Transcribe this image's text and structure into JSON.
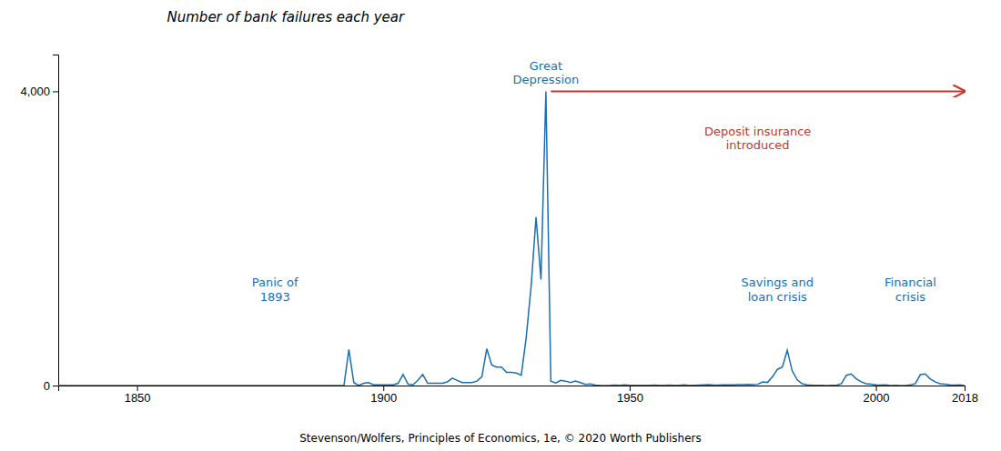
{
  "chart_data": {
    "type": "line",
    "title": "Number of bank failures each year",
    "caption": "Stevenson/Wolfers, Principles of Economics, 1e, © 2020 Worth Publishers",
    "color": "#1a6faf",
    "grid": false,
    "x": [
      1834,
      1835,
      1836,
      1837,
      1838,
      1839,
      1840,
      1841,
      1842,
      1843,
      1844,
      1845,
      1846,
      1847,
      1848,
      1849,
      1850,
      1851,
      1852,
      1853,
      1854,
      1855,
      1856,
      1857,
      1858,
      1859,
      1860,
      1861,
      1862,
      1863,
      1864,
      1865,
      1866,
      1867,
      1868,
      1869,
      1870,
      1871,
      1872,
      1873,
      1874,
      1875,
      1876,
      1877,
      1878,
      1879,
      1880,
      1881,
      1882,
      1883,
      1884,
      1885,
      1886,
      1887,
      1888,
      1889,
      1890,
      1891,
      1892,
      1893,
      1894,
      1895,
      1896,
      1897,
      1898,
      1899,
      1900,
      1901,
      1902,
      1903,
      1904,
      1905,
      1906,
      1907,
      1908,
      1909,
      1910,
      1911,
      1912,
      1913,
      1914,
      1915,
      1916,
      1917,
      1918,
      1919,
      1920,
      1921,
      1922,
      1923,
      1924,
      1925,
      1926,
      1927,
      1928,
      1929,
      1930,
      1931,
      1932,
      1933,
      1934,
      1935,
      1936,
      1937,
      1938,
      1939,
      1940,
      1941,
      1942,
      1943,
      1944,
      1945,
      1946,
      1947,
      1948,
      1949,
      1950,
      1951,
      1952,
      1953,
      1954,
      1955,
      1956,
      1957,
      1958,
      1959,
      1960,
      1961,
      1962,
      1963,
      1964,
      1965,
      1966,
      1967,
      1968,
      1969,
      1970,
      1971,
      1972,
      1973,
      1974,
      1975,
      1976,
      1977,
      1978,
      1979,
      1980,
      1981,
      1982,
      1983,
      1984,
      1985,
      1986,
      1987,
      1988,
      1989,
      1990,
      1991,
      1992,
      1993,
      1994,
      1995,
      1996,
      1997,
      1998,
      1999,
      2000,
      2001,
      2002,
      2003,
      2004,
      2005,
      2006,
      2007,
      2008,
      2009,
      2010,
      2011,
      2012,
      2013,
      2014,
      2015,
      2016,
      2017,
      2018
    ],
    "values": [
      0,
      0,
      0,
      0,
      0,
      0,
      0,
      0,
      0,
      0,
      0,
      0,
      0,
      0,
      0,
      0,
      0,
      0,
      0,
      0,
      0,
      0,
      0,
      0,
      0,
      0,
      0,
      0,
      0,
      0,
      0,
      0,
      0,
      0,
      0,
      0,
      0,
      0,
      0,
      0,
      0,
      0,
      0,
      0,
      0,
      0,
      0,
      0,
      0,
      0,
      0,
      0,
      0,
      0,
      0,
      0,
      0,
      0,
      0,
      490,
      40,
      0,
      30,
      40,
      10,
      10,
      10,
      10,
      10,
      30,
      150,
      20,
      10,
      70,
      150,
      30,
      30,
      30,
      30,
      50,
      100,
      70,
      40,
      40,
      40,
      60,
      120,
      500,
      280,
      250,
      250,
      180,
      180,
      170,
      140,
      650,
      1350,
      2290,
      1440,
      4000,
      60,
      35,
      70,
      60,
      40,
      60,
      40,
      17,
      22,
      5,
      2,
      1,
      2,
      6,
      3,
      9,
      4,
      2,
      3,
      2,
      3,
      5,
      3,
      2,
      5,
      3,
      2,
      9,
      3,
      4,
      6,
      9,
      11,
      7,
      7,
      8,
      8,
      10,
      12,
      13,
      15,
      13,
      17,
      49,
      42,
      120,
      220,
      250,
      480,
      200,
      80,
      25,
      10,
      5,
      3,
      2,
      1,
      2,
      3,
      25,
      140,
      157,
      92,
      51,
      24,
      18,
      8,
      5,
      8,
      0,
      4,
      0,
      0,
      8,
      25,
      148,
      157,
      92,
      51,
      24,
      18,
      8,
      5,
      8,
      0
    ],
    "xlim": [
      1834,
      2018
    ],
    "xticks": [
      1850,
      1900,
      1950,
      2000,
      2018
    ],
    "ylim": [
      0,
      4500
    ],
    "yticks": [
      0,
      {
        "value": 4000,
        "label": "4,000"
      }
    ],
    "annotations": [
      {
        "text": "Great\nDepression",
        "x": 1933,
        "y": 4050,
        "color": "#1a6faf"
      },
      {
        "text": "Panic of\n1893",
        "x": 1878,
        "y": 1100,
        "color": "#1a6faf"
      },
      {
        "text": "Savings and\nloan crisis",
        "x": 1980,
        "y": 1100,
        "color": "#1a6faf"
      },
      {
        "text": "Financial\ncrisis",
        "x": 2007,
        "y": 1100,
        "color": "#1a6faf"
      },
      {
        "text": "Deposit insurance\nintroduced",
        "x": 1976,
        "y": 3550,
        "color": "#c0392b",
        "arrow": {
          "x": 1934,
          "y": 4000,
          "x2": 2018,
          "y2": 4000
        }
      }
    ]
  }
}
